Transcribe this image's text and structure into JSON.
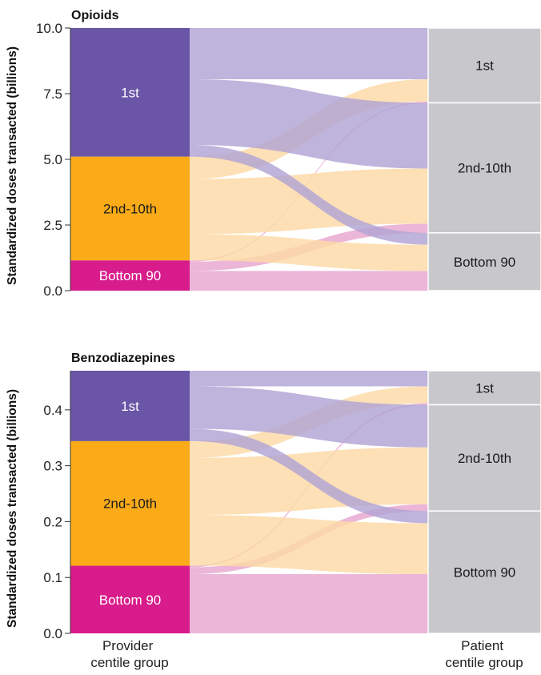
{
  "chart_data": [
    {
      "type": "sankey",
      "title": "Opioids",
      "ylabel": "Standardized doses transacted (billions)",
      "ylim": [
        0,
        10
      ],
      "yticks": [
        "0.0",
        "2.5",
        "5.0",
        "7.5",
        "10.0"
      ],
      "ytick_values": [
        0,
        2.5,
        5,
        7.5,
        10
      ],
      "grid": false,
      "colors": {
        "1st": "#6a55a6",
        "2nd-10th": "#fbab18",
        "Bottom 90": "#d81c8b",
        "patient": "#c8c8cc"
      },
      "flow_colors": {
        "1st": "#b1a4d4",
        "2nd-10th": "#fdd9a6",
        "Bottom 90": "#e8a6cf"
      },
      "source_nodes": [
        {
          "name": "1st",
          "label": "1st",
          "value": 4.9
        },
        {
          "name": "2nd-10th",
          "label": "2nd-10th",
          "value": 3.95
        },
        {
          "name": "Bottom 90",
          "label": "Bottom 90",
          "value": 1.15
        }
      ],
      "target_nodes": [
        {
          "name": "1st",
          "label": "1st",
          "value": 2.85
        },
        {
          "name": "2nd-10th",
          "label": "2nd-10th",
          "value": 4.95
        },
        {
          "name": "Bottom 90",
          "label": "Bottom 90",
          "value": 2.2
        }
      ],
      "flows": [
        {
          "source": "1st",
          "target": "1st",
          "value": 1.95
        },
        {
          "source": "1st",
          "target": "2nd-10th",
          "value": 2.5
        },
        {
          "source": "1st",
          "target": "Bottom 90",
          "value": 0.45
        },
        {
          "source": "2nd-10th",
          "target": "1st",
          "value": 0.85
        },
        {
          "source": "2nd-10th",
          "target": "2nd-10th",
          "value": 2.1
        },
        {
          "source": "2nd-10th",
          "target": "Bottom 90",
          "value": 1.0
        },
        {
          "source": "Bottom 90",
          "target": "1st",
          "value": 0.05
        },
        {
          "source": "Bottom 90",
          "target": "2nd-10th",
          "value": 0.35
        },
        {
          "source": "Bottom 90",
          "target": "Bottom 90",
          "value": 0.75
        }
      ]
    },
    {
      "type": "sankey",
      "title": "Benzodiazepines",
      "ylabel": "Standardized doses transacted (billions)",
      "ylim": [
        0,
        0.47
      ],
      "yticks": [
        "0.0",
        "0.1",
        "0.2",
        "0.3",
        "0.4"
      ],
      "ytick_values": [
        0,
        0.1,
        0.2,
        0.3,
        0.4
      ],
      "grid": false,
      "colors": {
        "1st": "#6a55a6",
        "2nd-10th": "#fbab18",
        "Bottom 90": "#d81c8b",
        "patient": "#c8c8cc"
      },
      "flow_colors": {
        "1st": "#b1a4d4",
        "2nd-10th": "#fdd9a6",
        "Bottom 90": "#e8a6cf"
      },
      "source_nodes": [
        {
          "name": "1st",
          "label": "1st",
          "value": 0.126
        },
        {
          "name": "2nd-10th",
          "label": "2nd-10th",
          "value": 0.223
        },
        {
          "name": "Bottom 90",
          "label": "Bottom 90",
          "value": 0.121
        }
      ],
      "target_nodes": [
        {
          "name": "1st",
          "label": "1st",
          "value": 0.061
        },
        {
          "name": "2nd-10th",
          "label": "2nd-10th",
          "value": 0.19
        },
        {
          "name": "Bottom 90",
          "label": "Bottom 90",
          "value": 0.219
        }
      ],
      "flows": [
        {
          "source": "1st",
          "target": "1st",
          "value": 0.028
        },
        {
          "source": "1st",
          "target": "2nd-10th",
          "value": 0.076
        },
        {
          "source": "1st",
          "target": "Bottom 90",
          "value": 0.022
        },
        {
          "source": "2nd-10th",
          "target": "1st",
          "value": 0.03
        },
        {
          "source": "2nd-10th",
          "target": "2nd-10th",
          "value": 0.102
        },
        {
          "source": "2nd-10th",
          "target": "Bottom 90",
          "value": 0.091
        },
        {
          "source": "Bottom 90",
          "target": "1st",
          "value": 0.003
        },
        {
          "source": "Bottom 90",
          "target": "2nd-10th",
          "value": 0.012
        },
        {
          "source": "Bottom 90",
          "target": "Bottom 90",
          "value": 0.106
        }
      ]
    }
  ],
  "axis_labels": {
    "source": "Provider centile group",
    "target": "Patient centile group"
  }
}
